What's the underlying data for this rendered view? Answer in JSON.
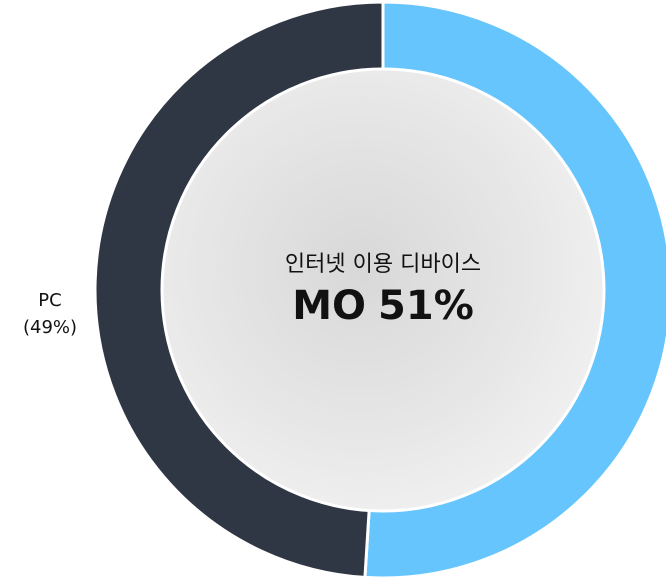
{
  "chart_data": {
    "type": "donut",
    "subtitle": "인터넷 이용 디바이스",
    "categories": [
      "MO",
      "PC"
    ],
    "values": [
      51,
      49
    ],
    "value_labels": [
      "51%",
      "(49%)"
    ],
    "colors": [
      "#66c5fc",
      "#303744"
    ]
  }
}
